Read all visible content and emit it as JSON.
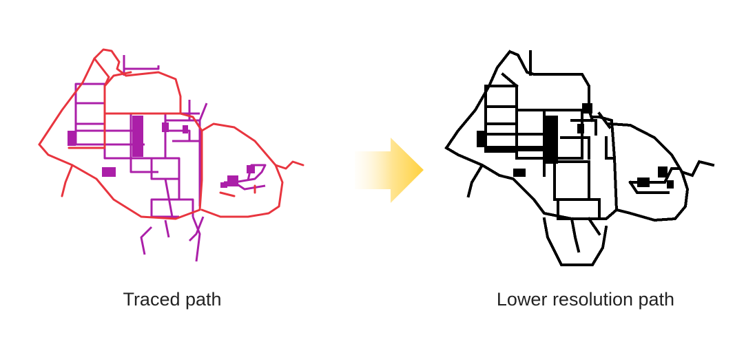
{
  "figure": {
    "left_caption": "Traced path",
    "right_caption": "Lower resolution path"
  },
  "colors": {
    "outer_path": "#e8353f",
    "inner_path": "#ab1fa8",
    "lowres_path": "#000000",
    "arrow_start": "#fff8e6",
    "arrow_end": "#ffd13e"
  },
  "icons": {
    "transform_arrow": "right-arrow-icon"
  }
}
